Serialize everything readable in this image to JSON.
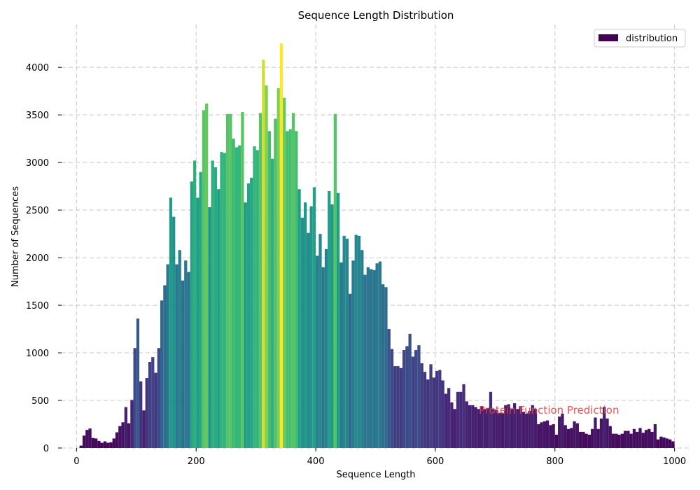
{
  "chart_data": {
    "type": "bar",
    "title": "Sequence Length Distribution",
    "xlabel": "Sequence Length",
    "ylabel": "Number of Sequences",
    "xlim": [
      -25,
      1025
    ],
    "ylim": [
      0,
      4450
    ],
    "xticks": [
      0,
      200,
      400,
      600,
      800,
      1000
    ],
    "yticks": [
      0,
      500,
      1000,
      1500,
      2000,
      2500,
      3000,
      3500,
      4000
    ],
    "grid": true,
    "grid_style": "dashed",
    "legend": {
      "label": "distribution",
      "placement": "top-right",
      "swatch_color": "#440154"
    },
    "annotation": {
      "text": "Protein Function Prediction",
      "x": 790,
      "y": 390,
      "color": "#e8413e"
    },
    "colormap": "viridis",
    "bin_start": 5,
    "bin_width": 5,
    "values": [
      25,
      130,
      190,
      205,
      105,
      100,
      75,
      55,
      70,
      55,
      60,
      100,
      165,
      230,
      270,
      430,
      260,
      505,
      1050,
      1360,
      700,
      395,
      735,
      905,
      955,
      790,
      1050,
      1550,
      1710,
      1930,
      2630,
      2430,
      1930,
      2080,
      1760,
      1970,
      1850,
      2800,
      3020,
      2630,
      2900,
      3550,
      3620,
      2530,
      3020,
      2950,
      2720,
      3110,
      3100,
      3510,
      3510,
      3250,
      3160,
      3180,
      3530,
      2580,
      2780,
      2840,
      3170,
      3130,
      3520,
      4080,
      3810,
      3330,
      3040,
      3460,
      3780,
      4250,
      3680,
      3330,
      3350,
      3520,
      3330,
      2720,
      2420,
      2580,
      2260,
      2540,
      2740,
      2020,
      2250,
      1900,
      2090,
      2700,
      2560,
      3510,
      2680,
      1950,
      2230,
      2200,
      1620,
      1970,
      2240,
      2230,
      2080,
      1820,
      1900,
      1880,
      1870,
      1940,
      1960,
      1720,
      1690,
      1250,
      1040,
      860,
      860,
      840,
      1030,
      1070,
      1200,
      960,
      1030,
      1080,
      890,
      800,
      720,
      880,
      740,
      810,
      820,
      710,
      570,
      630,
      480,
      410,
      590,
      590,
      670,
      490,
      450,
      450,
      430,
      410,
      440,
      410,
      420,
      590,
      410,
      400,
      370,
      370,
      450,
      460,
      410,
      470,
      410,
      440,
      380,
      360,
      390,
      450,
      410,
      250,
      270,
      280,
      290,
      240,
      250,
      140,
      330,
      360,
      240,
      200,
      210,
      280,
      260,
      170,
      170,
      150,
      140,
      200,
      320,
      200,
      310,
      430,
      310,
      230,
      150,
      150,
      140,
      150,
      180,
      180,
      150,
      200,
      170,
      210,
      160,
      190,
      200,
      170,
      250,
      90,
      120,
      110,
      100,
      90,
      70
    ]
  }
}
